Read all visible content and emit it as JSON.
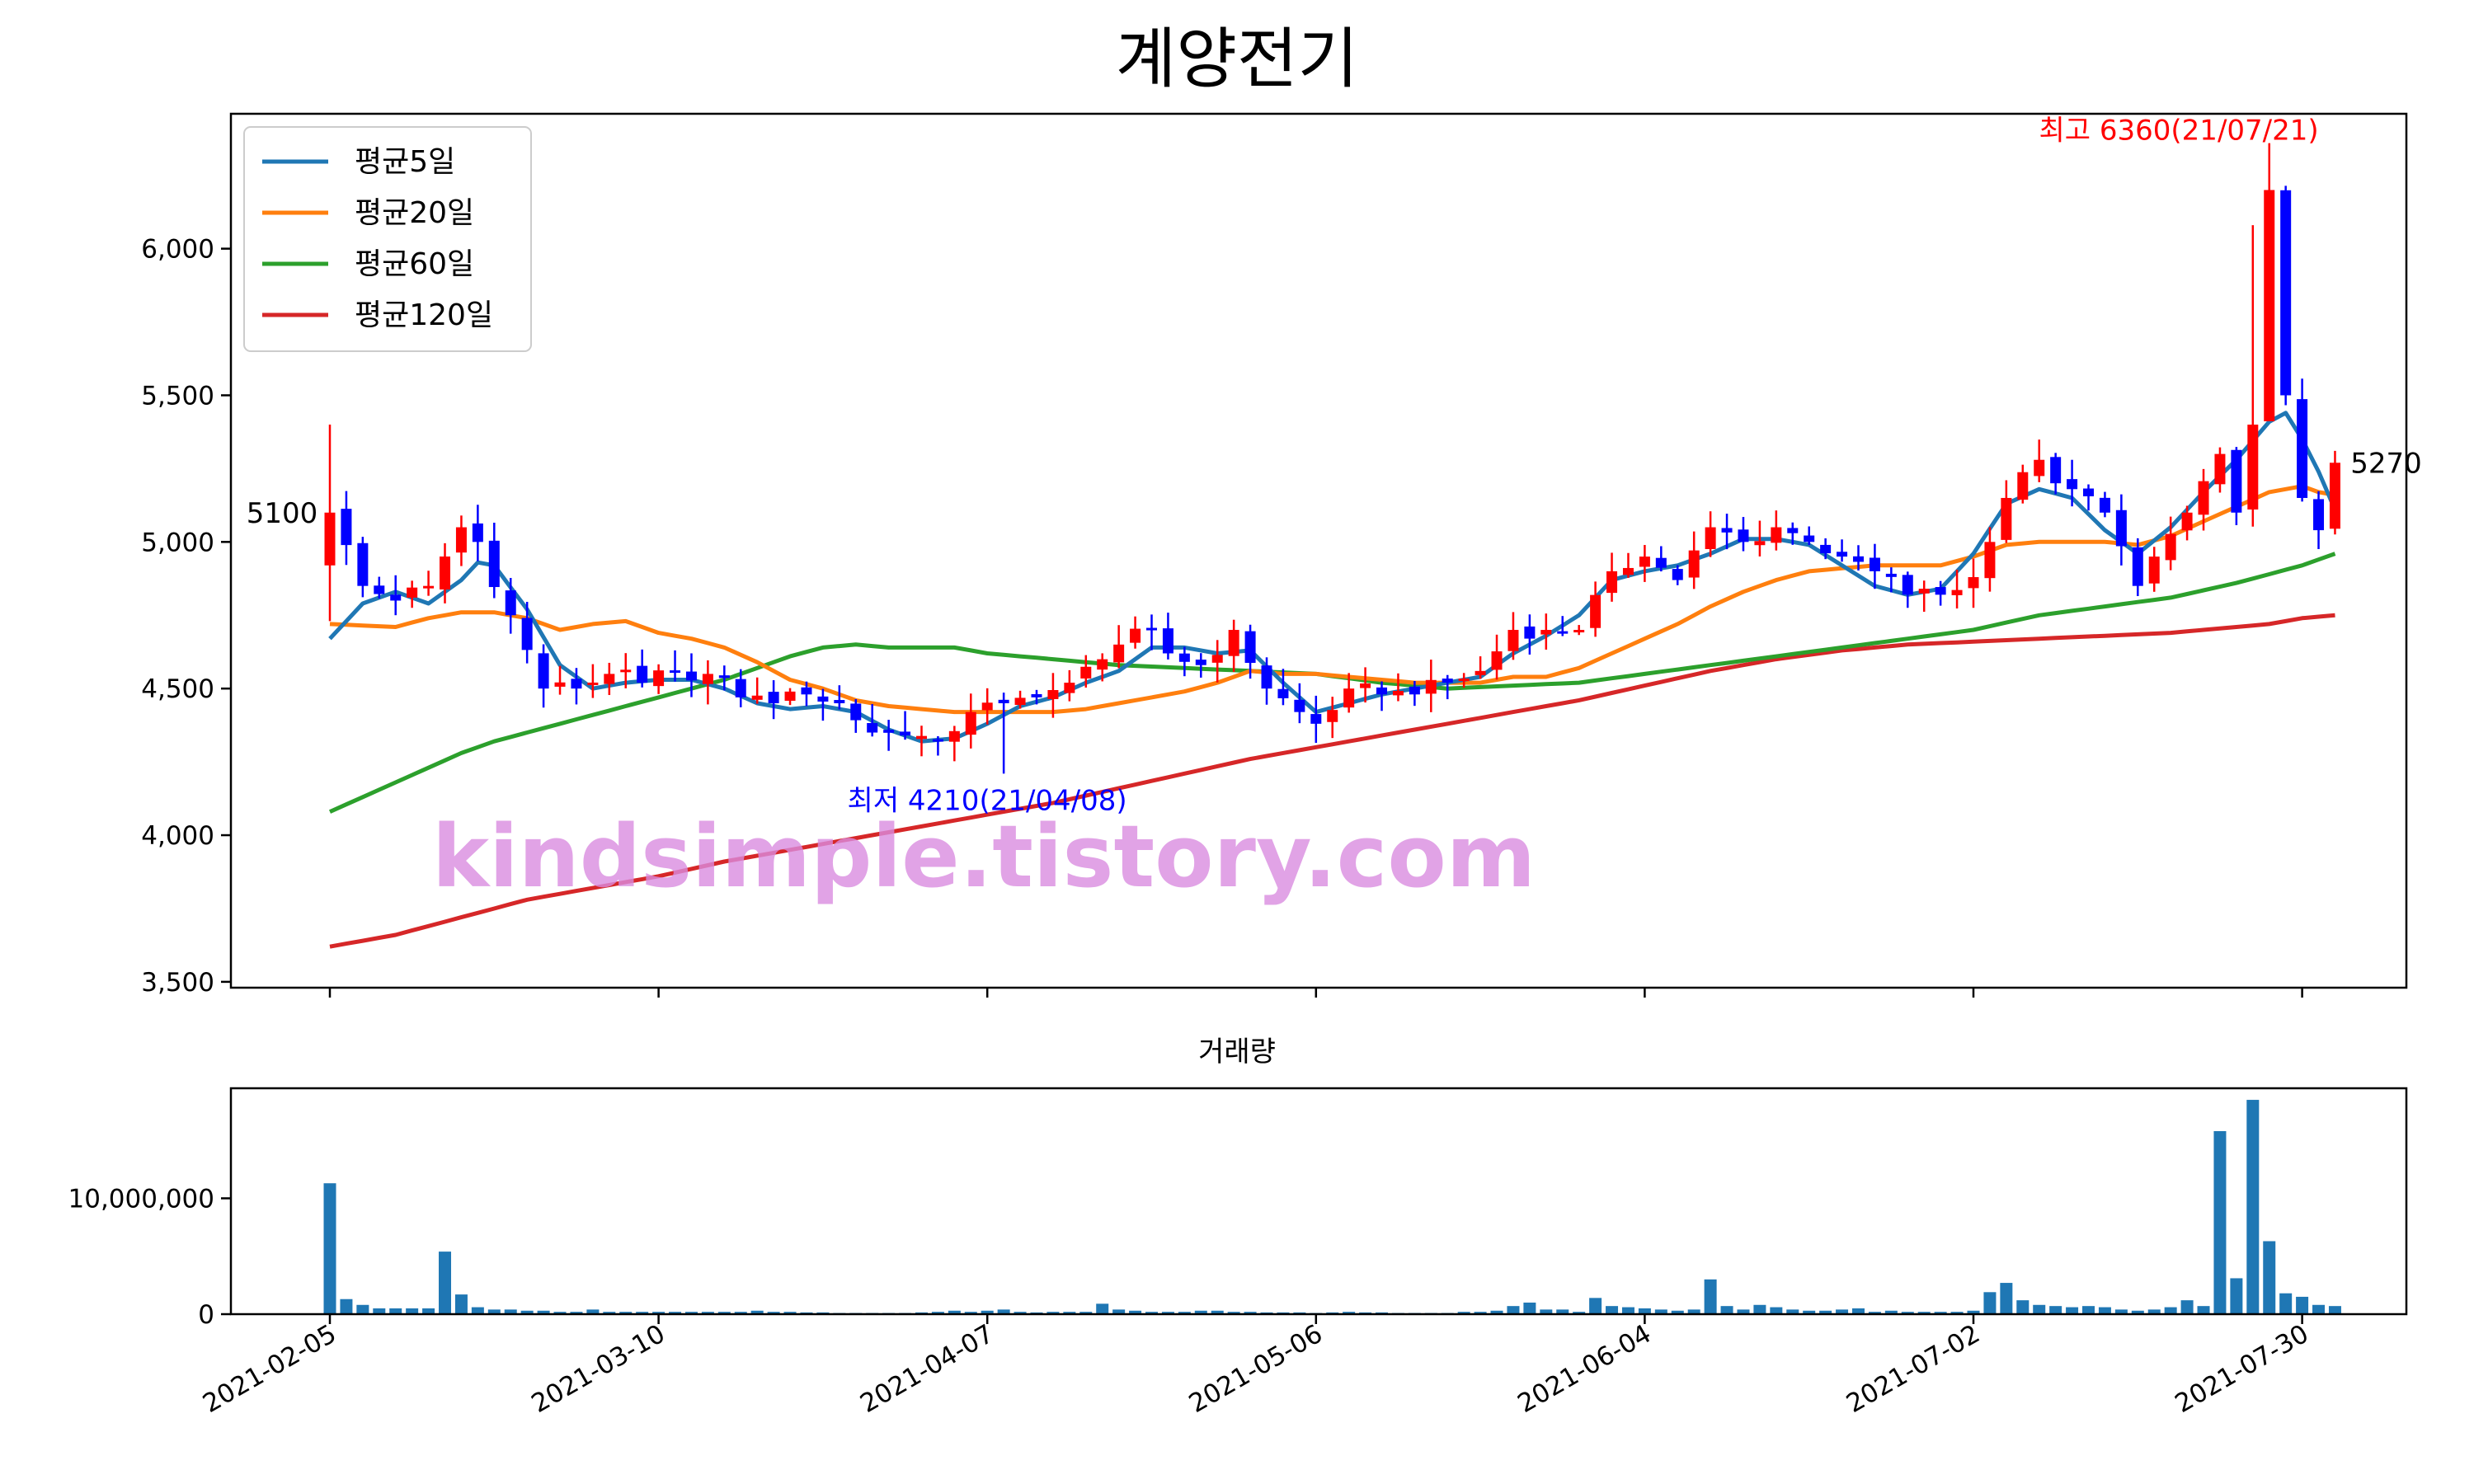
{
  "page": {
    "title": "계양전기"
  },
  "chart_data": {
    "type": "candlestick",
    "title": "계양전기",
    "price_axis": {
      "ylim": [
        3480,
        6460
      ],
      "ticks": [
        3500,
        4000,
        4500,
        5000,
        5500,
        6000
      ],
      "tick_labels": [
        "3,500",
        "4,000",
        "4,500",
        "5,000",
        "5,500",
        "6,000"
      ]
    },
    "x_axis": {
      "tick_labels": [
        "2021-02-05",
        "2021-03-10",
        "2021-04-07",
        "2021-05-06",
        "2021-06-04",
        "2021-07-02",
        "2021-07-30"
      ],
      "tick_index": [
        0,
        20,
        40,
        60,
        80,
        100,
        120
      ],
      "n": 123
    },
    "legend": {
      "placement": "top-left",
      "entries": [
        {
          "name": "평균5일",
          "color": "#1f77b4"
        },
        {
          "name": "평균20일",
          "color": "#ff7f0e"
        },
        {
          "name": "평균60일",
          "color": "#2ca02c"
        },
        {
          "name": "평균120일",
          "color": "#d62728"
        }
      ]
    },
    "colors": {
      "up": "#ff0000",
      "down": "#0000ff",
      "volume": "#1f77b4"
    },
    "annotations": {
      "high": {
        "text": "최고 6360(21/07/21)",
        "color": "#ff0000",
        "index": 113,
        "value": 6360
      },
      "low": {
        "text": "최저 4210(21/04/08)",
        "color": "#0000ff",
        "index": 41,
        "value": 4210
      },
      "first": {
        "text": "5100",
        "index": 0,
        "value": 5100
      },
      "last": {
        "text": "5270",
        "index": 122,
        "value": 5270
      }
    },
    "watermark": "kindsimple.tistory.com",
    "close_anchors": [
      [
        0,
        5100
      ],
      [
        2,
        4850
      ],
      [
        4,
        4800
      ],
      [
        6,
        4850
      ],
      [
        8,
        5050
      ],
      [
        9,
        5000
      ],
      [
        11,
        4750
      ],
      [
        13,
        4500
      ],
      [
        15,
        4500
      ],
      [
        17,
        4550
      ],
      [
        19,
        4520
      ],
      [
        21,
        4560
      ],
      [
        23,
        4550
      ],
      [
        25,
        4470
      ],
      [
        27,
        4450
      ],
      [
        29,
        4480
      ],
      [
        31,
        4450
      ],
      [
        33,
        4350
      ],
      [
        35,
        4340
      ],
      [
        37,
        4320
      ],
      [
        39,
        4420
      ],
      [
        41,
        4450
      ],
      [
        43,
        4470
      ],
      [
        45,
        4520
      ],
      [
        47,
        4600
      ],
      [
        48,
        4650
      ],
      [
        50,
        4700
      ],
      [
        51,
        4620
      ],
      [
        53,
        4580
      ],
      [
        55,
        4700
      ],
      [
        57,
        4500
      ],
      [
        59,
        4420
      ],
      [
        60,
        4380
      ],
      [
        62,
        4500
      ],
      [
        64,
        4480
      ],
      [
        66,
        4480
      ],
      [
        68,
        4520
      ],
      [
        70,
        4560
      ],
      [
        72,
        4700
      ],
      [
        74,
        4700
      ],
      [
        76,
        4700
      ],
      [
        78,
        4900
      ],
      [
        80,
        4950
      ],
      [
        82,
        4870
      ],
      [
        84,
        5050
      ],
      [
        86,
        5000
      ],
      [
        88,
        5050
      ],
      [
        90,
        5000
      ],
      [
        92,
        4950
      ],
      [
        94,
        4900
      ],
      [
        96,
        4820
      ],
      [
        98,
        4820
      ],
      [
        100,
        4880
      ],
      [
        101,
        5000
      ],
      [
        102,
        5150
      ],
      [
        104,
        5280
      ],
      [
        105,
        5200
      ],
      [
        106,
        5180
      ],
      [
        108,
        5100
      ],
      [
        110,
        4850
      ],
      [
        111,
        4950
      ],
      [
        113,
        5100
      ],
      [
        115,
        5300
      ],
      [
        116,
        5100
      ],
      [
        117,
        5400
      ],
      [
        118,
        6200
      ],
      [
        119,
        5500
      ],
      [
        120,
        5150
      ],
      [
        121,
        5040
      ],
      [
        122,
        5270
      ]
    ],
    "ma5_anchors": [
      [
        0,
        4670
      ],
      [
        2,
        4790
      ],
      [
        4,
        4830
      ],
      [
        6,
        4790
      ],
      [
        8,
        4870
      ],
      [
        9,
        4930
      ],
      [
        10,
        4920
      ],
      [
        12,
        4770
      ],
      [
        14,
        4580
      ],
      [
        16,
        4500
      ],
      [
        18,
        4520
      ],
      [
        20,
        4530
      ],
      [
        22,
        4530
      ],
      [
        24,
        4500
      ],
      [
        26,
        4450
      ],
      [
        28,
        4430
      ],
      [
        30,
        4440
      ],
      [
        32,
        4420
      ],
      [
        34,
        4360
      ],
      [
        36,
        4320
      ],
      [
        38,
        4330
      ],
      [
        40,
        4380
      ],
      [
        42,
        4440
      ],
      [
        44,
        4470
      ],
      [
        46,
        4520
      ],
      [
        48,
        4560
      ],
      [
        50,
        4640
      ],
      [
        52,
        4640
      ],
      [
        54,
        4620
      ],
      [
        56,
        4630
      ],
      [
        58,
        4520
      ],
      [
        60,
        4420
      ],
      [
        62,
        4450
      ],
      [
        64,
        4480
      ],
      [
        66,
        4500
      ],
      [
        68,
        4520
      ],
      [
        70,
        4540
      ],
      [
        72,
        4620
      ],
      [
        74,
        4680
      ],
      [
        76,
        4750
      ],
      [
        78,
        4870
      ],
      [
        80,
        4900
      ],
      [
        82,
        4920
      ],
      [
        84,
        4960
      ],
      [
        86,
        5010
      ],
      [
        88,
        5010
      ],
      [
        90,
        4990
      ],
      [
        92,
        4920
      ],
      [
        94,
        4850
      ],
      [
        96,
        4820
      ],
      [
        98,
        4840
      ],
      [
        100,
        4960
      ],
      [
        102,
        5130
      ],
      [
        104,
        5180
      ],
      [
        106,
        5150
      ],
      [
        108,
        5040
      ],
      [
        110,
        4960
      ],
      [
        112,
        5050
      ],
      [
        114,
        5170
      ],
      [
        116,
        5280
      ],
      [
        118,
        5410
      ],
      [
        119,
        5440
      ],
      [
        120,
        5350
      ],
      [
        121,
        5240
      ],
      [
        122,
        5110
      ]
    ],
    "ma20_anchors": [
      [
        0,
        4720
      ],
      [
        4,
        4710
      ],
      [
        6,
        4740
      ],
      [
        8,
        4760
      ],
      [
        10,
        4760
      ],
      [
        12,
        4740
      ],
      [
        14,
        4700
      ],
      [
        16,
        4720
      ],
      [
        18,
        4730
      ],
      [
        20,
        4690
      ],
      [
        22,
        4670
      ],
      [
        24,
        4640
      ],
      [
        26,
        4590
      ],
      [
        28,
        4530
      ],
      [
        30,
        4500
      ],
      [
        32,
        4460
      ],
      [
        34,
        4440
      ],
      [
        36,
        4430
      ],
      [
        38,
        4420
      ],
      [
        40,
        4420
      ],
      [
        42,
        4420
      ],
      [
        44,
        4420
      ],
      [
        46,
        4430
      ],
      [
        48,
        4450
      ],
      [
        50,
        4470
      ],
      [
        52,
        4490
      ],
      [
        54,
        4520
      ],
      [
        56,
        4560
      ],
      [
        58,
        4550
      ],
      [
        60,
        4550
      ],
      [
        62,
        4540
      ],
      [
        64,
        4530
      ],
      [
        66,
        4520
      ],
      [
        68,
        4520
      ],
      [
        70,
        4520
      ],
      [
        72,
        4540
      ],
      [
        74,
        4540
      ],
      [
        76,
        4570
      ],
      [
        78,
        4620
      ],
      [
        80,
        4670
      ],
      [
        82,
        4720
      ],
      [
        84,
        4780
      ],
      [
        86,
        4830
      ],
      [
        88,
        4870
      ],
      [
        90,
        4900
      ],
      [
        92,
        4910
      ],
      [
        94,
        4920
      ],
      [
        96,
        4920
      ],
      [
        98,
        4920
      ],
      [
        100,
        4950
      ],
      [
        102,
        4990
      ],
      [
        104,
        5000
      ],
      [
        106,
        5000
      ],
      [
        108,
        5000
      ],
      [
        110,
        4990
      ],
      [
        112,
        5020
      ],
      [
        114,
        5070
      ],
      [
        116,
        5120
      ],
      [
        118,
        5170
      ],
      [
        120,
        5190
      ],
      [
        121,
        5170
      ],
      [
        122,
        5160
      ]
    ],
    "ma60_anchors": [
      [
        0,
        4080
      ],
      [
        4,
        4180
      ],
      [
        8,
        4280
      ],
      [
        10,
        4320
      ],
      [
        14,
        4380
      ],
      [
        18,
        4440
      ],
      [
        20,
        4470
      ],
      [
        22,
        4500
      ],
      [
        24,
        4530
      ],
      [
        26,
        4570
      ],
      [
        28,
        4610
      ],
      [
        30,
        4640
      ],
      [
        32,
        4650
      ],
      [
        34,
        4640
      ],
      [
        36,
        4640
      ],
      [
        38,
        4640
      ],
      [
        40,
        4620
      ],
      [
        44,
        4600
      ],
      [
        48,
        4580
      ],
      [
        52,
        4570
      ],
      [
        56,
        4560
      ],
      [
        60,
        4550
      ],
      [
        64,
        4520
      ],
      [
        68,
        4500
      ],
      [
        72,
        4510
      ],
      [
        76,
        4520
      ],
      [
        80,
        4550
      ],
      [
        84,
        4580
      ],
      [
        88,
        4610
      ],
      [
        92,
        4640
      ],
      [
        96,
        4670
      ],
      [
        100,
        4700
      ],
      [
        104,
        4750
      ],
      [
        108,
        4780
      ],
      [
        112,
        4810
      ],
      [
        116,
        4860
      ],
      [
        120,
        4920
      ],
      [
        122,
        4960
      ]
    ],
    "ma120_anchors": [
      [
        0,
        3620
      ],
      [
        4,
        3660
      ],
      [
        8,
        3720
      ],
      [
        12,
        3780
      ],
      [
        16,
        3820
      ],
      [
        20,
        3860
      ],
      [
        24,
        3910
      ],
      [
        28,
        3950
      ],
      [
        32,
        3990
      ],
      [
        36,
        4030
      ],
      [
        40,
        4070
      ],
      [
        44,
        4110
      ],
      [
        48,
        4160
      ],
      [
        52,
        4210
      ],
      [
        56,
        4260
      ],
      [
        60,
        4300
      ],
      [
        64,
        4340
      ],
      [
        68,
        4380
      ],
      [
        72,
        4420
      ],
      [
        76,
        4460
      ],
      [
        80,
        4510
      ],
      [
        84,
        4560
      ],
      [
        88,
        4600
      ],
      [
        92,
        4630
      ],
      [
        96,
        4650
      ],
      [
        100,
        4660
      ],
      [
        104,
        4670
      ],
      [
        108,
        4680
      ],
      [
        112,
        4690
      ],
      [
        116,
        4710
      ],
      [
        118,
        4720
      ],
      [
        120,
        4740
      ],
      [
        122,
        4750
      ]
    ],
    "volume": {
      "title": "거래량",
      "ylim": [
        0,
        19500000
      ],
      "ticks": [
        0,
        10000000
      ],
      "tick_labels": [
        "0",
        "10,000,000"
      ],
      "anchors": [
        [
          0,
          11300000
        ],
        [
          1,
          1300000
        ],
        [
          2,
          800000
        ],
        [
          3,
          500000
        ],
        [
          4,
          500000
        ],
        [
          5,
          500000
        ],
        [
          6,
          500000
        ],
        [
          7,
          5400000
        ],
        [
          8,
          1700000
        ],
        [
          9,
          600000
        ],
        [
          10,
          400000
        ],
        [
          11,
          400000
        ],
        [
          12,
          300000
        ],
        [
          13,
          300000
        ],
        [
          14,
          200000
        ],
        [
          15,
          200000
        ],
        [
          16,
          400000
        ],
        [
          17,
          200000
        ],
        [
          18,
          200000
        ],
        [
          19,
          200000
        ],
        [
          20,
          200000
        ],
        [
          21,
          200000
        ],
        [
          22,
          200000
        ],
        [
          23,
          200000
        ],
        [
          24,
          200000
        ],
        [
          25,
          200000
        ],
        [
          26,
          300000
        ],
        [
          27,
          200000
        ],
        [
          28,
          200000
        ],
        [
          29,
          150000
        ],
        [
          30,
          150000
        ],
        [
          31,
          100000
        ],
        [
          32,
          100000
        ],
        [
          33,
          100000
        ],
        [
          34,
          100000
        ],
        [
          35,
          100000
        ],
        [
          36,
          150000
        ],
        [
          37,
          200000
        ],
        [
          38,
          300000
        ],
        [
          39,
          200000
        ],
        [
          40,
          300000
        ],
        [
          41,
          400000
        ],
        [
          42,
          200000
        ],
        [
          43,
          150000
        ],
        [
          44,
          200000
        ],
        [
          45,
          200000
        ],
        [
          46,
          200000
        ],
        [
          47,
          900000
        ],
        [
          48,
          400000
        ],
        [
          49,
          300000
        ],
        [
          50,
          200000
        ],
        [
          51,
          200000
        ],
        [
          52,
          200000
        ],
        [
          53,
          300000
        ],
        [
          54,
          300000
        ],
        [
          55,
          200000
        ],
        [
          56,
          200000
        ],
        [
          57,
          150000
        ],
        [
          58,
          150000
        ],
        [
          59,
          150000
        ],
        [
          60,
          100000
        ],
        [
          61,
          150000
        ],
        [
          62,
          200000
        ],
        [
          63,
          150000
        ],
        [
          64,
          150000
        ],
        [
          65,
          100000
        ],
        [
          66,
          100000
        ],
        [
          67,
          100000
        ],
        [
          68,
          100000
        ],
        [
          69,
          200000
        ],
        [
          70,
          200000
        ],
        [
          71,
          300000
        ],
        [
          72,
          700000
        ],
        [
          73,
          1000000
        ],
        [
          74,
          400000
        ],
        [
          75,
          400000
        ],
        [
          76,
          200000
        ],
        [
          77,
          1400000
        ],
        [
          78,
          700000
        ],
        [
          79,
          600000
        ],
        [
          80,
          500000
        ],
        [
          81,
          400000
        ],
        [
          82,
          300000
        ],
        [
          83,
          400000
        ],
        [
          84,
          3000000
        ],
        [
          85,
          700000
        ],
        [
          86,
          400000
        ],
        [
          87,
          800000
        ],
        [
          88,
          600000
        ],
        [
          89,
          400000
        ],
        [
          90,
          300000
        ],
        [
          91,
          300000
        ],
        [
          92,
          400000
        ],
        [
          93,
          500000
        ],
        [
          94,
          200000
        ],
        [
          95,
          300000
        ],
        [
          96,
          200000
        ],
        [
          97,
          200000
        ],
        [
          98,
          200000
        ],
        [
          99,
          200000
        ],
        [
          100,
          300000
        ],
        [
          101,
          1900000
        ],
        [
          102,
          2700000
        ],
        [
          103,
          1200000
        ],
        [
          104,
          800000
        ],
        [
          105,
          700000
        ],
        [
          106,
          600000
        ],
        [
          107,
          700000
        ],
        [
          108,
          600000
        ],
        [
          109,
          400000
        ],
        [
          110,
          300000
        ],
        [
          111,
          400000
        ],
        [
          112,
          600000
        ],
        [
          113,
          1200000
        ],
        [
          114,
          700000
        ],
        [
          115,
          15800000
        ],
        [
          116,
          3100000
        ],
        [
          117,
          18500000
        ],
        [
          118,
          6300000
        ],
        [
          119,
          1800000
        ],
        [
          120,
          1500000
        ],
        [
          121,
          800000
        ],
        [
          122,
          700000
        ]
      ]
    }
  }
}
